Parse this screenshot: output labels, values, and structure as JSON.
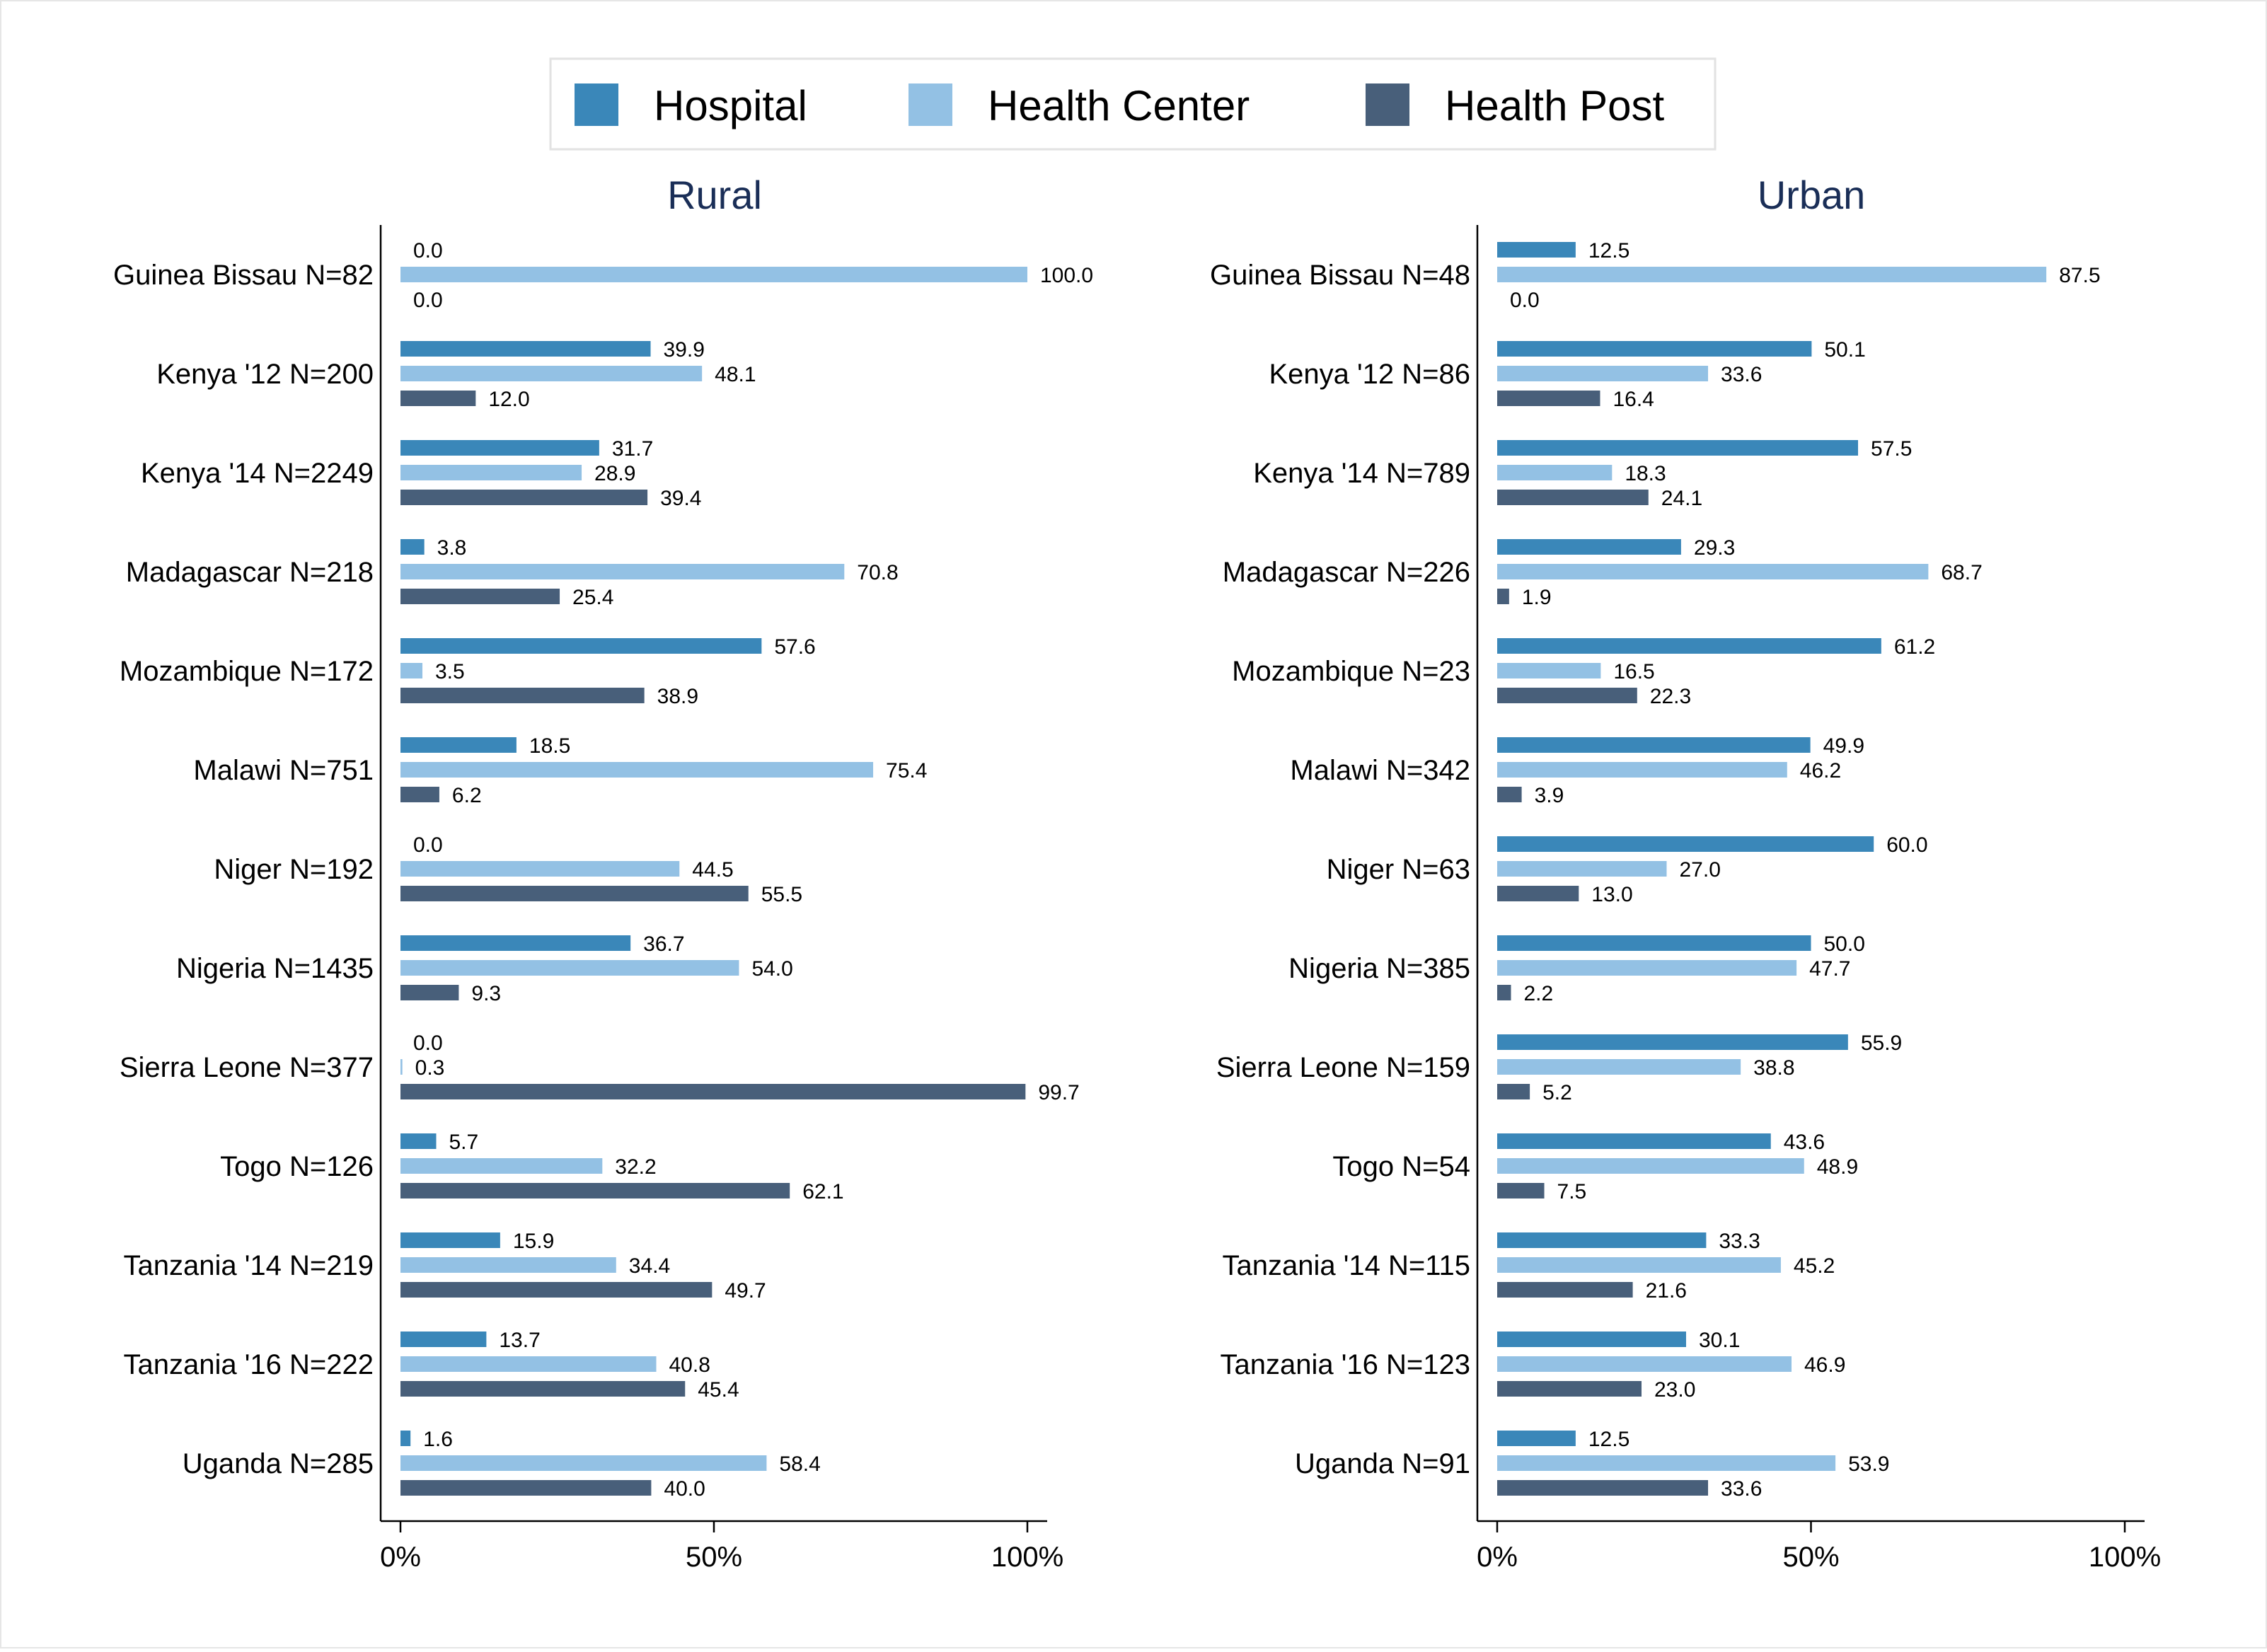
{
  "chart_data": [
    {
      "type": "bar",
      "orientation": "horizontal",
      "title": "Rural",
      "categories": [
        "Guinea Bissau N=82",
        "Kenya '12 N=200",
        "Kenya '14 N=2249",
        "Madagascar N=218",
        "Mozambique N=172",
        "Malawi N=751",
        "Niger N=192",
        "Nigeria N=1435",
        "Sierra Leone N=377",
        "Togo N=126",
        "Tanzania '14 N=219",
        "Tanzania '16 N=222",
        "Uganda N=285"
      ],
      "series": [
        {
          "name": "Hospital",
          "values": [
            0.0,
            39.9,
            31.7,
            3.8,
            57.6,
            18.5,
            0.0,
            36.7,
            0.0,
            5.7,
            15.9,
            13.7,
            1.6
          ],
          "labels": [
            "0.0",
            "39.9",
            "31.7",
            "3.8",
            "57.6",
            "18.5",
            "0.0",
            "36.7",
            "0.0",
            "5.7",
            "15.9",
            "13.7",
            "1.6"
          ]
        },
        {
          "name": "Health Center",
          "values": [
            100.0,
            48.1,
            28.9,
            70.8,
            3.5,
            75.4,
            44.5,
            54.0,
            0.3,
            32.2,
            34.4,
            40.8,
            58.4
          ],
          "labels": [
            "100.0",
            "48.1",
            "28.9",
            "70.8",
            "3.5",
            "75.4",
            "44.5",
            "54.0",
            "0.3",
            "32.2",
            "34.4",
            "40.8",
            "58.4"
          ]
        },
        {
          "name": "Health Post",
          "values": [
            0.0,
            12.0,
            39.4,
            25.4,
            38.9,
            6.2,
            55.5,
            9.3,
            99.7,
            62.1,
            49.7,
            45.4,
            40.0
          ],
          "labels": [
            "0.0",
            "12.0",
            "39.4",
            "25.4",
            "38.9",
            "6.2",
            "55.5",
            "9.3",
            "99.7",
            "62.1",
            "49.7",
            "45.4",
            "40.0"
          ]
        }
      ],
      "xlim": [
        0,
        100
      ],
      "xticks": [
        0,
        50,
        100
      ],
      "xtick_labels": [
        "0%",
        "50%",
        "100%"
      ]
    },
    {
      "type": "bar",
      "orientation": "horizontal",
      "title": "Urban",
      "categories": [
        "Guinea Bissau N=48",
        "Kenya '12 N=86",
        "Kenya '14 N=789",
        "Madagascar N=226",
        "Mozambique N=23",
        "Malawi N=342",
        "Niger N=63",
        "Nigeria N=385",
        "Sierra Leone N=159",
        "Togo N=54",
        "Tanzania '14 N=115",
        "Tanzania '16 N=123",
        "Uganda N=91"
      ],
      "series": [
        {
          "name": "Hospital",
          "values": [
            12.5,
            50.1,
            57.5,
            29.3,
            61.2,
            49.9,
            60.0,
            50.0,
            55.9,
            43.6,
            33.3,
            30.1,
            12.5
          ],
          "labels": [
            "12.5",
            "50.1",
            "57.5",
            "29.3",
            "61.2",
            "49.9",
            "60.0",
            "50.0",
            "55.9",
            "43.6",
            "33.3",
            "30.1",
            "12.5"
          ]
        },
        {
          "name": "Health Center",
          "values": [
            87.5,
            33.6,
            18.3,
            68.7,
            16.5,
            46.2,
            27.0,
            47.7,
            38.8,
            48.9,
            45.2,
            46.9,
            53.9
          ],
          "labels": [
            "87.5",
            "33.6",
            "18.3",
            "68.7",
            "16.5",
            "46.2",
            "27.0",
            "47.7",
            "38.8",
            "48.9",
            "45.2",
            "46.9",
            "53.9"
          ]
        },
        {
          "name": "Health Post",
          "values": [
            0.0,
            16.4,
            24.1,
            1.9,
            22.3,
            3.9,
            13.0,
            2.2,
            5.2,
            7.5,
            21.6,
            23.0,
            33.6
          ],
          "labels": [
            "0.0",
            "16.4",
            "24.1",
            "1.9",
            "22.3",
            "3.9",
            "13.0",
            "2.2",
            "5.2",
            "7.5",
            "21.6",
            "23.0",
            "33.6"
          ]
        }
      ],
      "xlim": [
        0,
        100
      ],
      "xticks": [
        0,
        50,
        100
      ],
      "xtick_labels": [
        "0%",
        "50%",
        "100%"
      ]
    }
  ],
  "legend": {
    "position": "top-center",
    "items": [
      {
        "name": "Hospital",
        "color": "#3a87b9"
      },
      {
        "name": "Health Center",
        "color": "#93c1e4"
      },
      {
        "name": "Health Post",
        "color": "#485f7a"
      }
    ]
  },
  "colors": {
    "hospital": "#3a87b9",
    "health_center": "#93c1e4",
    "health_post": "#485f7a",
    "panel_title": "#1a2e57"
  }
}
